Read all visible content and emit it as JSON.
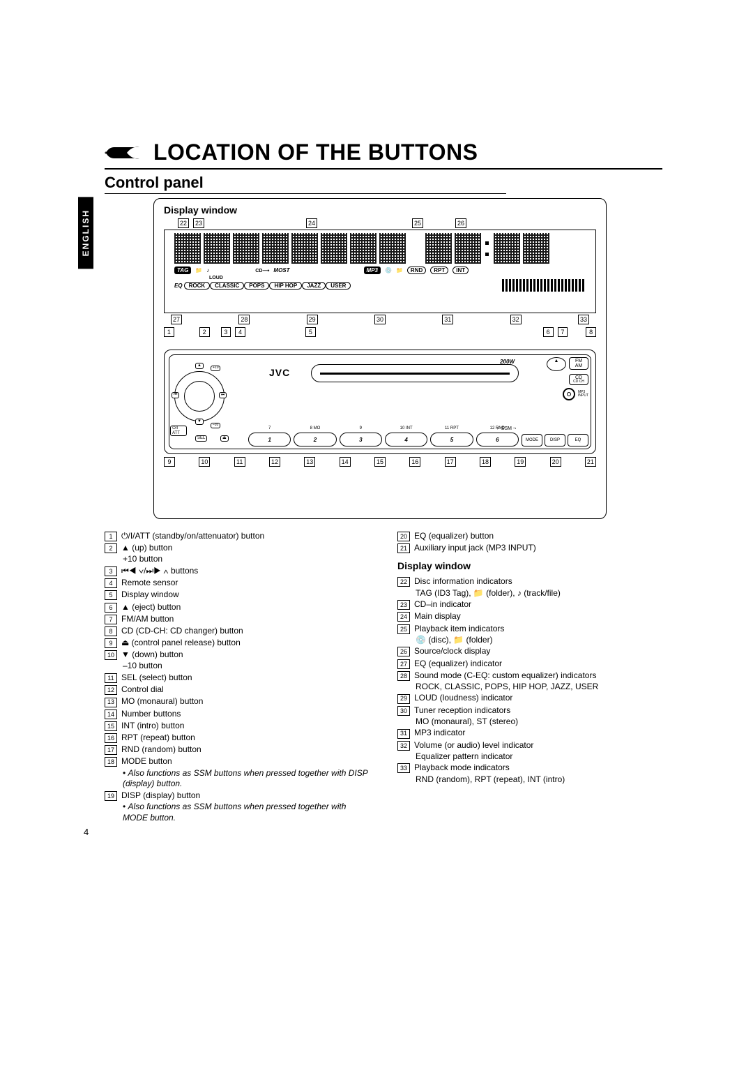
{
  "language_tab": "ENGLISH",
  "main_title": "LOCATION OF THE BUTTONS",
  "section_title": "Control panel",
  "display_window_label": "Display window",
  "page_number": "4",
  "diagram": {
    "top_callouts": [
      "22",
      "23",
      "24",
      "25",
      "26"
    ],
    "mid_callouts": [
      "27",
      "28",
      "29",
      "30",
      "31",
      "32",
      "33"
    ],
    "panel_top_callouts": [
      "1",
      "2",
      "3",
      "4",
      "5",
      "6",
      "7",
      "8"
    ],
    "panel_bottom_callouts": [
      "9",
      "10",
      "11",
      "12",
      "13",
      "14",
      "15",
      "16",
      "17",
      "18",
      "19",
      "20",
      "21"
    ],
    "lcd_badges_row2_left": [
      "TAG"
    ],
    "lcd_text_most": "MOST",
    "lcd_text_loud": "LOUD",
    "lcd_text_cd": "CD",
    "lcd_badge_mp3": "MP3",
    "lcd_pills_right": [
      "RND",
      "RPT",
      "INT"
    ],
    "eq_label": "EQ",
    "eq_modes": [
      "ROCK",
      "CLASSIC",
      "POPS",
      "HIP HOP",
      "JAZZ",
      "USER"
    ],
    "brand": "JVC",
    "watt": "200W",
    "right_buttons": {
      "eject": "▲",
      "fm_am_top": "FM",
      "fm_am_bot": "AM",
      "cd_top": "CD",
      "cd_bot": "CD CH",
      "jack_label": "MP3\nINPUT"
    },
    "knob_labels": {
      "up": "▲",
      "up_sub": "+10",
      "down": "▼",
      "down_sub": "–10",
      "prev": "⏮",
      "next": "⏭",
      "att": "⏻/I\nATT",
      "sel": "SEL",
      "rel": "⏏"
    },
    "num_subs": [
      "7",
      "8  MO",
      "9",
      "10  INT",
      "11  RPT",
      "12  RND"
    ],
    "nums": [
      "1",
      "2",
      "3",
      "4",
      "5",
      "6"
    ],
    "modes": [
      "MODE",
      "DISP",
      "EQ"
    ],
    "ssm": "SSM"
  },
  "left_list": [
    {
      "n": "1",
      "pre": "⏻/I",
      "text": "/ATT (standby/on/attenuator) button"
    },
    {
      "n": "2",
      "pre": "▲",
      "text": " (up) button",
      "sub": "+10 button"
    },
    {
      "n": "3",
      "pre": "⏮◀ ∨/⏭▶ ∧",
      "text": " buttons"
    },
    {
      "n": "4",
      "text": "Remote sensor"
    },
    {
      "n": "5",
      "text": "Display window"
    },
    {
      "n": "6",
      "pre": "▲",
      "text": " (eject) button"
    },
    {
      "n": "7",
      "text": "FM/AM button"
    },
    {
      "n": "8",
      "text": "CD (CD-CH: CD changer) button"
    },
    {
      "n": "9",
      "pre": "⏏",
      "text": " (control panel release) button"
    },
    {
      "n": "10",
      "pre": "▼",
      "text": " (down) button",
      "sub": "–10 button"
    },
    {
      "n": "11",
      "text": "SEL (select) button"
    },
    {
      "n": "12",
      "text": "Control dial"
    },
    {
      "n": "13",
      "text": "MO (monaural) button"
    },
    {
      "n": "14",
      "text": "Number buttons"
    },
    {
      "n": "15",
      "text": "INT (intro) button"
    },
    {
      "n": "16",
      "text": "RPT (repeat) button"
    },
    {
      "n": "17",
      "text": "RND (random) button"
    },
    {
      "n": "18",
      "text": "MODE button",
      "note": "Also functions as SSM buttons when pressed together with DISP (display) button."
    },
    {
      "n": "19",
      "text": "DISP (display) button",
      "note": "Also functions as SSM buttons when pressed together with MODE button."
    }
  ],
  "right_top": [
    {
      "n": "20",
      "text": "EQ (equalizer) button"
    },
    {
      "n": "21",
      "text": "Auxiliary input jack (MP3 INPUT)"
    }
  ],
  "dw_heading": "Display window",
  "right_list": [
    {
      "n": "22",
      "text": "Disc information indicators",
      "sub": "TAG (ID3 Tag), 📁 (folder), ♪ (track/file)"
    },
    {
      "n": "23",
      "text": "CD–in indicator"
    },
    {
      "n": "24",
      "text": "Main display"
    },
    {
      "n": "25",
      "text": "Playback item indicators",
      "sub": "💿 (disc), 📁 (folder)"
    },
    {
      "n": "26",
      "text": "Source/clock display"
    },
    {
      "n": "27",
      "text": "EQ (equalizer) indicator"
    },
    {
      "n": "28",
      "text": "Sound mode (C-EQ: custom equalizer) indicators",
      "sub": "ROCK, CLASSIC, POPS, HIP HOP, JAZZ, USER"
    },
    {
      "n": "29",
      "text": "LOUD (loudness) indicator"
    },
    {
      "n": "30",
      "text": "Tuner reception indicators",
      "sub": "MO (monaural), ST (stereo)"
    },
    {
      "n": "31",
      "text": "MP3 indicator"
    },
    {
      "n": "32",
      "text": "Volume (or audio) level indicator",
      "sub": "Equalizer pattern indicator"
    },
    {
      "n": "33",
      "text": "Playback mode indicators",
      "sub": "RND (random), RPT (repeat), INT (intro)"
    }
  ]
}
